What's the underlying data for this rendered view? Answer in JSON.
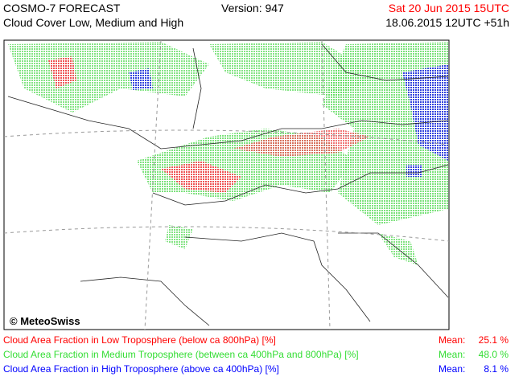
{
  "header": {
    "title": "COSMO-7 FORECAST",
    "subtitle": "Cloud Cover Low, Medium and High",
    "version": "Version: 947",
    "valid_time": "Sat 20 Jun 2015 15UTC",
    "run_time": "18.06.2015 12UTC +51h"
  },
  "map": {
    "credit": "© MeteoSwiss"
  },
  "legend": [
    {
      "label": "Cloud Area Fraction in Low Troposphere (below ca 800hPa) [%]",
      "mean_label": "Mean:",
      "mean": "25.1 %",
      "color": "#ff0000"
    },
    {
      "label": "Cloud Area Fraction in Medium Troposphere (between ca 400hPa and 800hPa) [%]",
      "mean_label": "Mean:",
      "mean": "48.0 %",
      "color": "#33dd33"
    },
    {
      "label": "Cloud Area Fraction in High Troposphere (above ca 400hPa) [%]",
      "mean_label": "Mean:",
      "mean": "8.1 %",
      "color": "#0000ff"
    }
  ]
}
